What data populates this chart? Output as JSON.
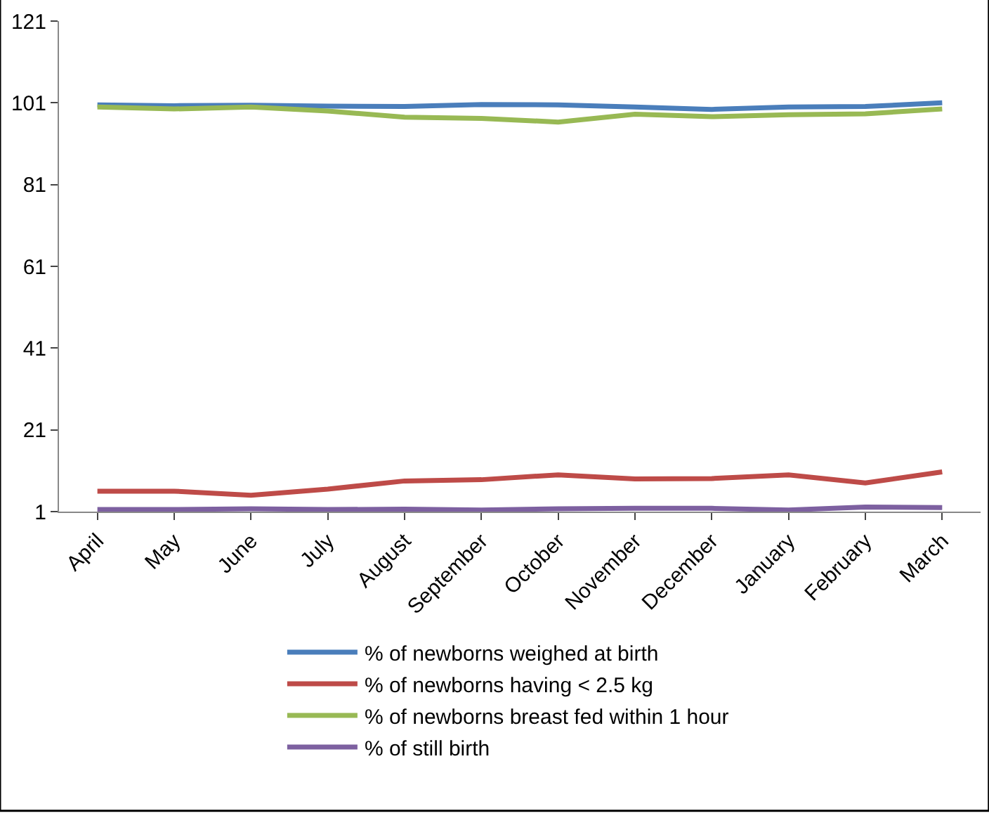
{
  "chart_data": {
    "type": "line",
    "categories": [
      "April",
      "May",
      "June",
      "July",
      "August",
      "September",
      "October",
      "November",
      "December",
      "January",
      "February",
      "March"
    ],
    "series": [
      {
        "name": "% of newborns weighed at birth",
        "color": "#4a7ebb",
        "values": [
          100.5,
          100.3,
          100.4,
          100.2,
          100.1,
          100.6,
          100.5,
          100,
          99.4,
          100,
          100.1,
          101
        ]
      },
      {
        "name": "% of newborns having < 2.5 kg",
        "color": "#be4b48",
        "values": [
          6,
          6,
          5,
          6.5,
          8.5,
          8.8,
          10,
          9,
          9.1,
          10,
          8,
          10.7
        ]
      },
      {
        "name": "% of newborns breast fed within 1 hour",
        "color": "#98b954",
        "values": [
          100,
          99.5,
          100,
          99,
          97.5,
          97.2,
          96.3,
          98.2,
          97.6,
          98.1,
          98.3,
          99.5
        ]
      },
      {
        "name": "% of still birth",
        "color": "#7d60a0",
        "values": [
          1.5,
          1.5,
          1.7,
          1.5,
          1.6,
          1.4,
          1.7,
          1.8,
          1.8,
          1.4,
          2.1,
          2.0
        ]
      }
    ],
    "ylim": [
      1,
      121
    ],
    "yticks": [
      1,
      21,
      41,
      61,
      81,
      101,
      121
    ],
    "legend": "bottom",
    "marker": "none",
    "line_style": "solid"
  }
}
